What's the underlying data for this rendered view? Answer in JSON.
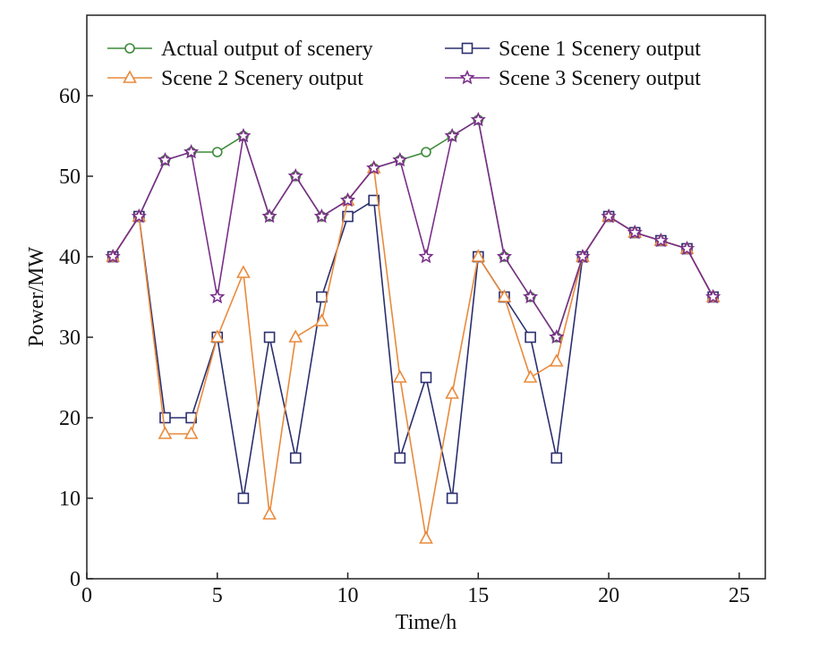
{
  "chart_data": {
    "type": "line",
    "xlabel": "Time/h",
    "ylabel": "Power/MW",
    "xlim": [
      0,
      26
    ],
    "ylim": [
      0,
      70
    ],
    "x_ticks": [
      "0",
      "5",
      "10",
      "15",
      "20",
      "25"
    ],
    "y_ticks": [
      "0",
      "10",
      "20",
      "30",
      "40",
      "50",
      "60"
    ],
    "grid": false,
    "legend_position": "top",
    "x": [
      1,
      2,
      3,
      4,
      5,
      6,
      7,
      8,
      9,
      10,
      11,
      12,
      13,
      14,
      15,
      16,
      17,
      18,
      19,
      20,
      21,
      22,
      23,
      24
    ],
    "series": [
      {
        "name": "Actual output of scenery",
        "color": "#3d8a3a",
        "marker": "circle",
        "values": [
          40,
          45,
          52,
          53,
          53,
          55,
          45,
          50,
          45,
          47,
          51,
          52,
          53,
          55,
          57,
          40,
          35,
          30,
          40,
          45,
          43,
          42,
          41,
          35
        ]
      },
      {
        "name": "Scene 1 Scenery output",
        "color": "#2b2f6e",
        "marker": "square",
        "values": [
          40,
          45,
          20,
          20,
          30,
          10,
          30,
          15,
          35,
          45,
          47,
          15,
          25,
          10,
          40,
          35,
          30,
          15,
          40,
          45,
          43,
          42,
          41,
          35
        ]
      },
      {
        "name": "Scene 2 Scenery output",
        "color": "#e98a3c",
        "marker": "triangle",
        "values": [
          40,
          45,
          18,
          18,
          30,
          38,
          8,
          30,
          32,
          47,
          51,
          25,
          5,
          23,
          40,
          35,
          25,
          27,
          40,
          45,
          43,
          42,
          41,
          35
        ]
      },
      {
        "name": "Scene 3 Scenery output",
        "color": "#7a2f8a",
        "marker": "star",
        "values": [
          40,
          45,
          52,
          53,
          35,
          55,
          45,
          50,
          45,
          47,
          51,
          52,
          40,
          55,
          57,
          40,
          35,
          30,
          40,
          45,
          43,
          42,
          41,
          35
        ]
      }
    ]
  }
}
